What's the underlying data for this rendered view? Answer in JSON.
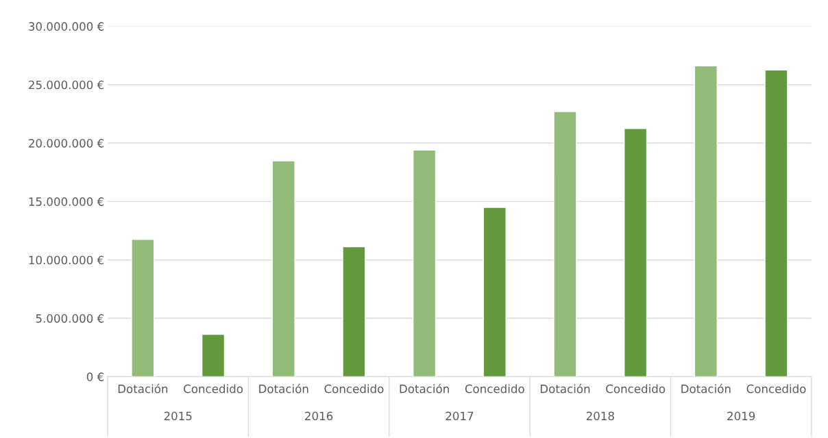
{
  "chart_data": {
    "type": "bar",
    "categories": [
      "Dotación",
      "Concedido",
      "Dotación",
      "Concedido",
      "Dotación",
      "Concedido",
      "Dotación",
      "Concedido",
      "Dotación",
      "Concedido"
    ],
    "values": [
      11750000,
      3630000,
      18480000,
      11130000,
      19400000,
      14500000,
      22700000,
      21250000,
      26600000,
      26250000
    ],
    "colors": [
      "#93bb7a",
      "#639a3d",
      "#93bb7a",
      "#639a3d",
      "#93bb7a",
      "#639a3d",
      "#93bb7a",
      "#639a3d",
      "#93bb7a",
      "#639a3d"
    ],
    "ylim": [
      0,
      30000000
    ],
    "yticks": [
      {
        "value": 0,
        "label": "0 €"
      },
      {
        "value": 5000000,
        "label": "5.000.000 €"
      },
      {
        "value": 10000000,
        "label": "10.000.000 €"
      },
      {
        "value": 15000000,
        "label": "15.000.000 €"
      },
      {
        "value": 20000000,
        "label": "20.000.000 €"
      },
      {
        "value": 25000000,
        "label": "25.000.000 €"
      },
      {
        "value": 30000000,
        "label": "30.000.000 €"
      }
    ],
    "annotations": [
      "2015",
      "2016",
      "2017",
      "2018",
      "2019"
    ],
    "grid": "y"
  }
}
